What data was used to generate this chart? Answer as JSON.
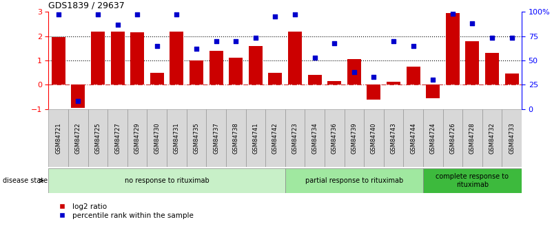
{
  "title": "GDS1839 / 29637",
  "samples": [
    "GSM84721",
    "GSM84722",
    "GSM84725",
    "GSM84727",
    "GSM84729",
    "GSM84730",
    "GSM84731",
    "GSM84735",
    "GSM84737",
    "GSM84738",
    "GSM84741",
    "GSM84742",
    "GSM84723",
    "GSM84734",
    "GSM84736",
    "GSM84739",
    "GSM84740",
    "GSM84743",
    "GSM84744",
    "GSM84724",
    "GSM84726",
    "GSM84728",
    "GSM84732",
    "GSM84733"
  ],
  "log2_ratio": [
    1.95,
    -0.95,
    2.2,
    2.2,
    2.15,
    0.5,
    2.2,
    1.0,
    1.4,
    1.1,
    1.6,
    0.5,
    2.2,
    0.4,
    0.15,
    1.05,
    -0.6,
    0.12,
    0.75,
    -0.55,
    2.95,
    1.8,
    1.3,
    0.45
  ],
  "percentile": [
    97,
    8,
    97,
    87,
    97,
    65,
    97,
    62,
    70,
    70,
    73,
    95,
    97,
    53,
    68,
    38,
    33,
    70,
    65,
    30,
    98,
    88,
    73,
    73
  ],
  "groups": [
    {
      "label": "no response to rituximab",
      "start": 0,
      "end": 12,
      "color": "#c8f0c8"
    },
    {
      "label": "partial response to rituximab",
      "start": 12,
      "end": 19,
      "color": "#a0e8a0"
    },
    {
      "label": "complete response to\nrituximab",
      "start": 19,
      "end": 24,
      "color": "#3dba3d"
    }
  ],
  "bar_color": "#cc0000",
  "scatter_color": "#0000cc",
  "ylim_left": [
    -1,
    3
  ],
  "ylim_right": [
    0,
    100
  ],
  "yticks_left": [
    -1,
    0,
    1,
    2,
    3
  ],
  "yticks_right": [
    0,
    25,
    50,
    75,
    100
  ],
  "ytick_labels_right": [
    "0",
    "25",
    "50",
    "75",
    "100%"
  ],
  "hline0_color": "#cc3333",
  "hline0_style": "-.",
  "hline12_color": "black",
  "hline12_style": ":",
  "background_color": "white",
  "label_box_color": "#d8d8d8",
  "label_box_edge": "#888888"
}
